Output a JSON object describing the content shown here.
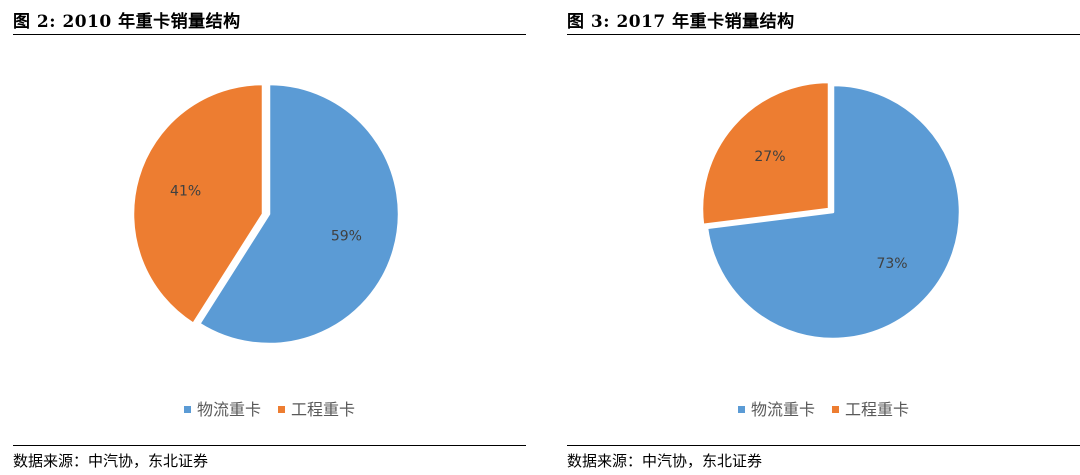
{
  "figures": [
    {
      "title": "图 2: 2010 年重卡销量结构",
      "source": "数据来源：中汽协，东北证券"
    },
    {
      "title": "图 3: 2017 年重卡销量结构",
      "source": "数据来源：中汽协，东北证券"
    }
  ],
  "chart_data": [
    {
      "type": "pie",
      "title": "图 2: 2010 年重卡销量结构",
      "categories": [
        "物流重卡",
        "工程重卡"
      ],
      "values": [
        59,
        41
      ],
      "labels": [
        "59%",
        "41%"
      ],
      "colors": [
        "#5B9BD5",
        "#ED7D31"
      ],
      "legend": "bottom"
    },
    {
      "type": "pie",
      "title": "图 3: 2017 年重卡销量结构",
      "categories": [
        "物流重卡",
        "工程重卡"
      ],
      "values": [
        73,
        27
      ],
      "labels": [
        "73%",
        "27%"
      ],
      "colors": [
        "#5B9BD5",
        "#ED7D31"
      ],
      "legend": "bottom"
    }
  ]
}
